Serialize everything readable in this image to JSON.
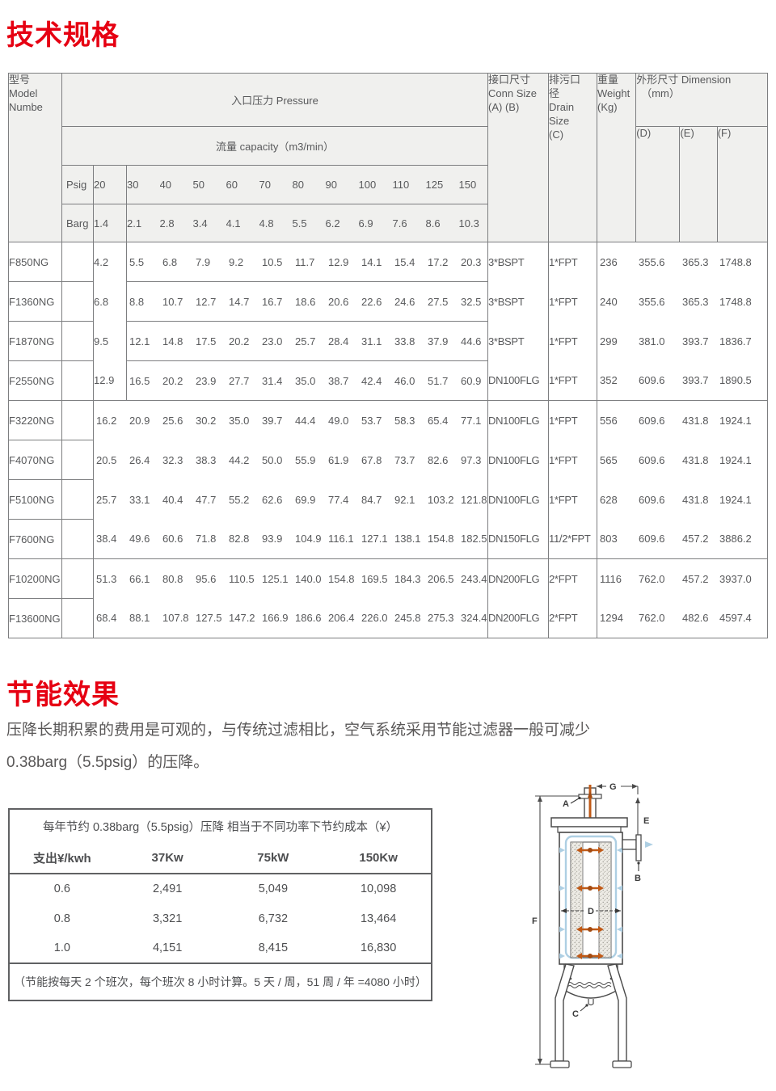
{
  "colors": {
    "accent_red": "#e60012",
    "diagram_orange": "#c05a17",
    "diagram_blue": "#aecfe3"
  },
  "sections": {
    "spec_title": "技术规格",
    "energy_title": "节能效果",
    "intro_line1": "压降长期积累的费用是可观的，与传统过滤相比，空气系统采用节能过滤器一般可减少",
    "intro_line2": "0.38barg（5.5psig）的压降。"
  },
  "spec_table": {
    "header": {
      "model_lines": [
        "型号",
        "Model",
        "Numbe"
      ],
      "pressure": "入口压力 Pressure",
      "capacity": "流量 capacity（m3/min）",
      "psig_label": "Psig",
      "barg_label": "Barg",
      "psig": [
        "20",
        "30",
        "40",
        "50",
        "60",
        "70",
        "80",
        "90",
        "100",
        "110",
        "125",
        "150"
      ],
      "barg": [
        "1.4",
        "2.1",
        "2.8",
        "3.4",
        "4.1",
        "4.8",
        "5.5",
        "6.2",
        "6.9",
        "7.6",
        "8.6",
        "10.3"
      ],
      "conn_lines": [
        "接口尺寸",
        "Conn Size",
        "(A) (B)"
      ],
      "drain_lines": [
        "排污口",
        "径",
        "Drain",
        "Size",
        "(C)"
      ],
      "weight_lines": [
        "重量",
        "Weight",
        "(Kg)"
      ],
      "dim_lines": [
        "外形尺寸 Dimension",
        "（mm）"
      ],
      "d": "(D)",
      "e": "(E)",
      "f": "(F)"
    },
    "group_ends": [
      3,
      7,
      9
    ],
    "rows": [
      {
        "group": 1,
        "model": "F850NG",
        "values": [
          "4.2",
          "5.5",
          "6.8",
          "7.9",
          "9.2",
          "10.5",
          "11.7",
          "12.9",
          "14.1",
          "15.4",
          "17.2",
          "20.3"
        ],
        "conn": "3*BSPT",
        "drain": "1*FPT",
        "weight": "236",
        "d": "355.6",
        "e": "365.3",
        "f": "1748.8"
      },
      {
        "group": 1,
        "model": "F1360NG",
        "values": [
          "6.8",
          "8.8",
          "10.7",
          "12.7",
          "14.7",
          "16.7",
          "18.6",
          "20.6",
          "22.6",
          "24.6",
          "27.5",
          "32.5"
        ],
        "conn": "3*BSPT",
        "drain": "1*FPT",
        "weight": "240",
        "d": "355.6",
        "e": "365.3",
        "f": "1748.8"
      },
      {
        "group": 1,
        "model": "F1870NG",
        "values": [
          "9.5",
          "12.1",
          "14.8",
          "17.5",
          "20.2",
          "23.0",
          "25.7",
          "28.4",
          "31.1",
          "33.8",
          "37.9",
          "44.6"
        ],
        "conn": "3*BSPT",
        "drain": "1*FPT",
        "weight": "299",
        "d": "381.0",
        "e": "393.7",
        "f": "1836.7"
      },
      {
        "group": 1,
        "model": "F2550NG",
        "values": [
          "12.9",
          "16.5",
          "20.2",
          "23.9",
          "27.7",
          "31.4",
          "35.0",
          "38.7",
          "42.4",
          "46.0",
          "51.7",
          "60.9"
        ],
        "conn": "DN100FLG",
        "drain": "1*FPT",
        "weight": "352",
        "d": "609.6",
        "e": "393.7",
        "f": "1890.5"
      },
      {
        "group": 2,
        "model": "F3220NG",
        "values": [
          "16.2",
          "20.9",
          "25.6",
          "30.2",
          "35.0",
          "39.7",
          "44.4",
          "49.0",
          "53.7",
          "58.3",
          "65.4",
          "77.1"
        ],
        "conn": "DN100FLG",
        "drain": "1*FPT",
        "weight": "556",
        "d": "609.6",
        "e": "431.8",
        "f": "1924.1"
      },
      {
        "group": 2,
        "model": "F4070NG",
        "values": [
          "20.5",
          "26.4",
          "32.3",
          "38.3",
          "44.2",
          "50.0",
          "55.9",
          "61.9",
          "67.8",
          "73.7",
          "82.6",
          "97.3"
        ],
        "conn": "DN100FLG",
        "drain": "1*FPT",
        "weight": "565",
        "d": "609.6",
        "e": "431.8",
        "f": "1924.1"
      },
      {
        "group": 2,
        "model": "F5100NG",
        "values": [
          "25.7",
          "33.1",
          "40.4",
          "47.7",
          "55.2",
          "62.6",
          "69.9",
          "77.4",
          "84.7",
          "92.1",
          "103.2",
          "121.8"
        ],
        "conn": "DN100FLG",
        "drain": "1*FPT",
        "weight": "628",
        "d": "609.6",
        "e": "431.8",
        "f": "1924.1"
      },
      {
        "group": 2,
        "model": "F7600NG",
        "values": [
          "38.4",
          "49.6",
          "60.6",
          "71.8",
          "82.8",
          "93.9",
          "104.9",
          "116.1",
          "127.1",
          "138.1",
          "154.8",
          "182.5"
        ],
        "conn": "DN150FLG",
        "drain": "11/2*FPT",
        "weight": "803",
        "d": "609.6",
        "e": "457.2",
        "f": "3886.2"
      },
      {
        "group": 3,
        "model": "F10200NG",
        "values": [
          "51.3",
          "66.1",
          "80.8",
          "95.6",
          "110.5",
          "125.1",
          "140.0",
          "154.8",
          "169.5",
          "184.3",
          "206.5",
          "243.4"
        ],
        "conn": "DN200FLG",
        "drain": "2*FPT",
        "weight": "1116",
        "d": "762.0",
        "e": "457.2",
        "f": "3937.0"
      },
      {
        "group": 3,
        "model": "F13600NG",
        "values": [
          "68.4",
          "88.1",
          "107.8",
          "127.5",
          "147.2",
          "166.9",
          "186.6",
          "206.4",
          "226.0",
          "245.8",
          "275.3",
          "324.4"
        ],
        "conn": "DN200FLG",
        "drain": "2*FPT",
        "weight": "1294",
        "d": "762.0",
        "e": "482.6",
        "f": "4597.4"
      }
    ]
  },
  "savings_table": {
    "title": "每年节约 0.38barg（5.5psig）压降 相当于不同功率下节约成本（¥）",
    "headers": [
      "支出¥/kwh",
      "37Kw",
      "75kW",
      "150Kw"
    ],
    "rows": [
      [
        "0.6",
        "2,491",
        "5,049",
        "10,098"
      ],
      [
        "0.8",
        "3,321",
        "6,732",
        "13,464"
      ],
      [
        "1.0",
        "4,151",
        "8,415",
        "16,830"
      ]
    ],
    "note": "（节能按每天 2 个班次，每个班次 8 小时计算。5 天 / 周，51 周 / 年 =4080 小时）"
  },
  "diagram": {
    "labels": {
      "a": "A",
      "b": "B",
      "c": "C",
      "d": "D",
      "e": "E",
      "f": "F",
      "g": "G"
    }
  }
}
